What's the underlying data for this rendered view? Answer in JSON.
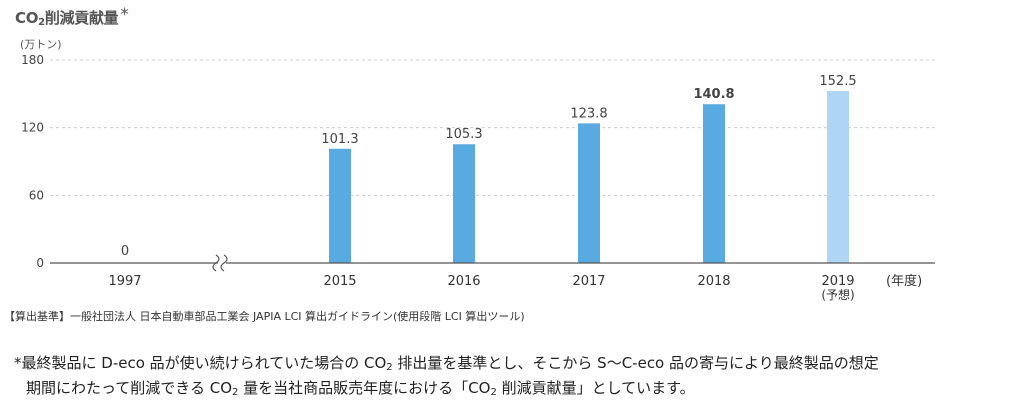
{
  "chart_data": {
    "type": "bar",
    "title": "CO",
    "title_sub": "2",
    "title_rest": "削減貢献量",
    "title_mark": "*",
    "unit_label": "(万トン)",
    "categories": [
      "1997",
      "2015",
      "2016",
      "2017",
      "2018",
      "2019"
    ],
    "category_notes": [
      "",
      "",
      "",
      "",
      "",
      "(予想)"
    ],
    "values": [
      0,
      101.3,
      105.3,
      123.8,
      140.8,
      152.5
    ],
    "value_labels": [
      "0",
      "101.3",
      "105.3",
      "123.8",
      "140.8",
      "152.5"
    ],
    "highlight_bold_index": 4,
    "forecast_index": 5,
    "yticks": [
      0,
      60,
      120,
      180
    ],
    "ylim": [
      0,
      180
    ],
    "x_unit_label": "(年度)",
    "axis_break_after_index": 0,
    "colors": {
      "bar": "#5aaae2",
      "forecast_bar": "#aed5f3",
      "grid": "#cccccc",
      "axis": "#555555"
    },
    "grid": true
  },
  "notes": {
    "basis": "【算出基準】一般社団法人 日本自動車部品工業会 JAPIA LCI 算出ガイドライン(使用段階 LCI 算出ツール)",
    "footnote_line1_a": "*最終製品に D-eco 品が使い続けられていた場合の CO",
    "footnote_line1_sub": "2",
    "footnote_line1_b": " 排出量を基準とし、そこから S〜C-eco 品の寄与により最終製品の想定",
    "footnote_line2_a": "期間にわたって削減できる CO",
    "footnote_line2_sub": "2",
    "footnote_line2_b": " 量を当社商品販売年度における「CO",
    "footnote_line2_sub2": "2",
    "footnote_line2_c": " 削減貢献量」としています。"
  }
}
